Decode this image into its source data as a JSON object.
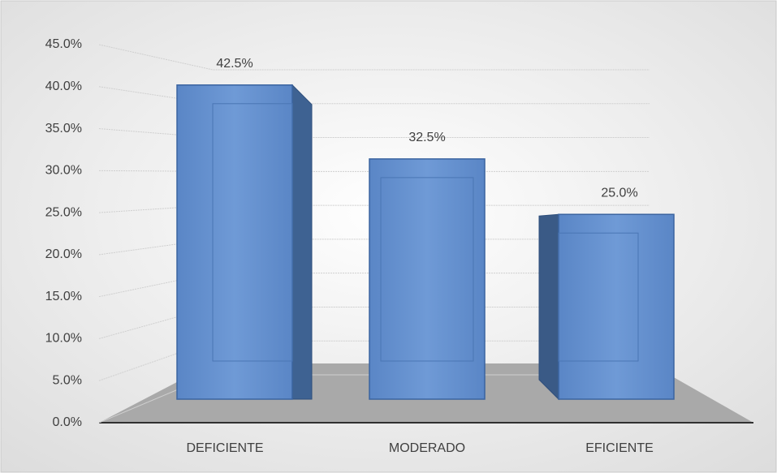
{
  "chart_data": {
    "type": "bar",
    "categories": [
      "DEFICIENTE",
      "MODERADO",
      "EFICIENTE"
    ],
    "values": [
      42.5,
      32.5,
      25.0
    ],
    "value_labels": [
      "42.5%",
      "32.5%",
      "25.0%"
    ],
    "color": "#5f8ccc",
    "ylim": [
      0,
      45
    ],
    "yticks": [
      {
        "value": 0,
        "label": "0.0%"
      },
      {
        "value": 5,
        "label": "5.0%"
      },
      {
        "value": 10,
        "label": "10.0%"
      },
      {
        "value": 15,
        "label": "15.0%"
      },
      {
        "value": 20,
        "label": "20.0%"
      },
      {
        "value": 25,
        "label": "25.0%"
      },
      {
        "value": 30,
        "label": "30.0%"
      },
      {
        "value": 35,
        "label": "35.0%"
      },
      {
        "value": 40,
        "label": "40.0%"
      },
      {
        "value": 45,
        "label": "45.0%"
      }
    ],
    "grid": true
  }
}
